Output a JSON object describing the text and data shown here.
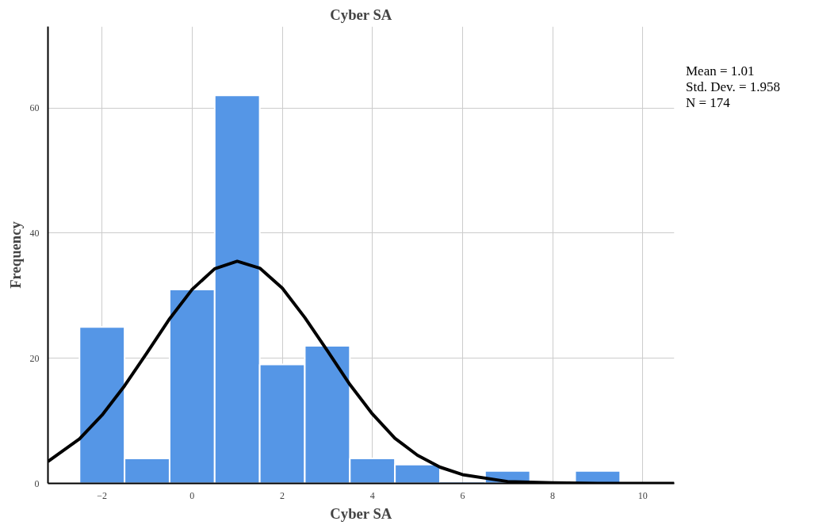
{
  "chart_data": {
    "type": "histogram",
    "title": "Cyber SA",
    "xlabel": "Cyber SA",
    "ylabel": "Frequency",
    "bins": [
      -2.5,
      -1.5,
      -0.5,
      0.5,
      1.5,
      2.5,
      3.5,
      4.5,
      5.5,
      6.5,
      7.5,
      8.5,
      9.5
    ],
    "values": [
      25,
      4,
      31,
      62,
      19,
      22,
      4,
      3,
      0,
      2,
      0,
      2
    ],
    "color": "#5596e6",
    "series": [
      {
        "type": "line",
        "color": "#000000",
        "x": [
          -3.2,
          -2.5,
          -2,
          -1.5,
          -1,
          -0.5,
          0,
          0.5,
          1,
          1.5,
          2,
          2.5,
          3,
          3.5,
          4,
          4.5,
          5,
          5.5,
          6,
          7,
          8,
          9,
          10.7
        ],
        "values": [
          3.5,
          7.1,
          10.9,
          15.6,
          20.9,
          26.3,
          31,
          34.3,
          35.5,
          34.4,
          31.2,
          26.5,
          21.2,
          15.8,
          11.1,
          7.2,
          4.5,
          2.6,
          1.4,
          0.3,
          0.1,
          0,
          0
        ]
      }
    ],
    "xlim": [
      -3.2,
      10.7
    ],
    "ylim": [
      0,
      73
    ],
    "xticks": [
      -2,
      0,
      2,
      4,
      6,
      8,
      10
    ],
    "yticks": [
      0,
      20,
      40,
      60
    ],
    "grid": true,
    "annotations": [
      "Mean = 1.01",
      "Std. Dev. = 1.958",
      "N = 174"
    ]
  }
}
